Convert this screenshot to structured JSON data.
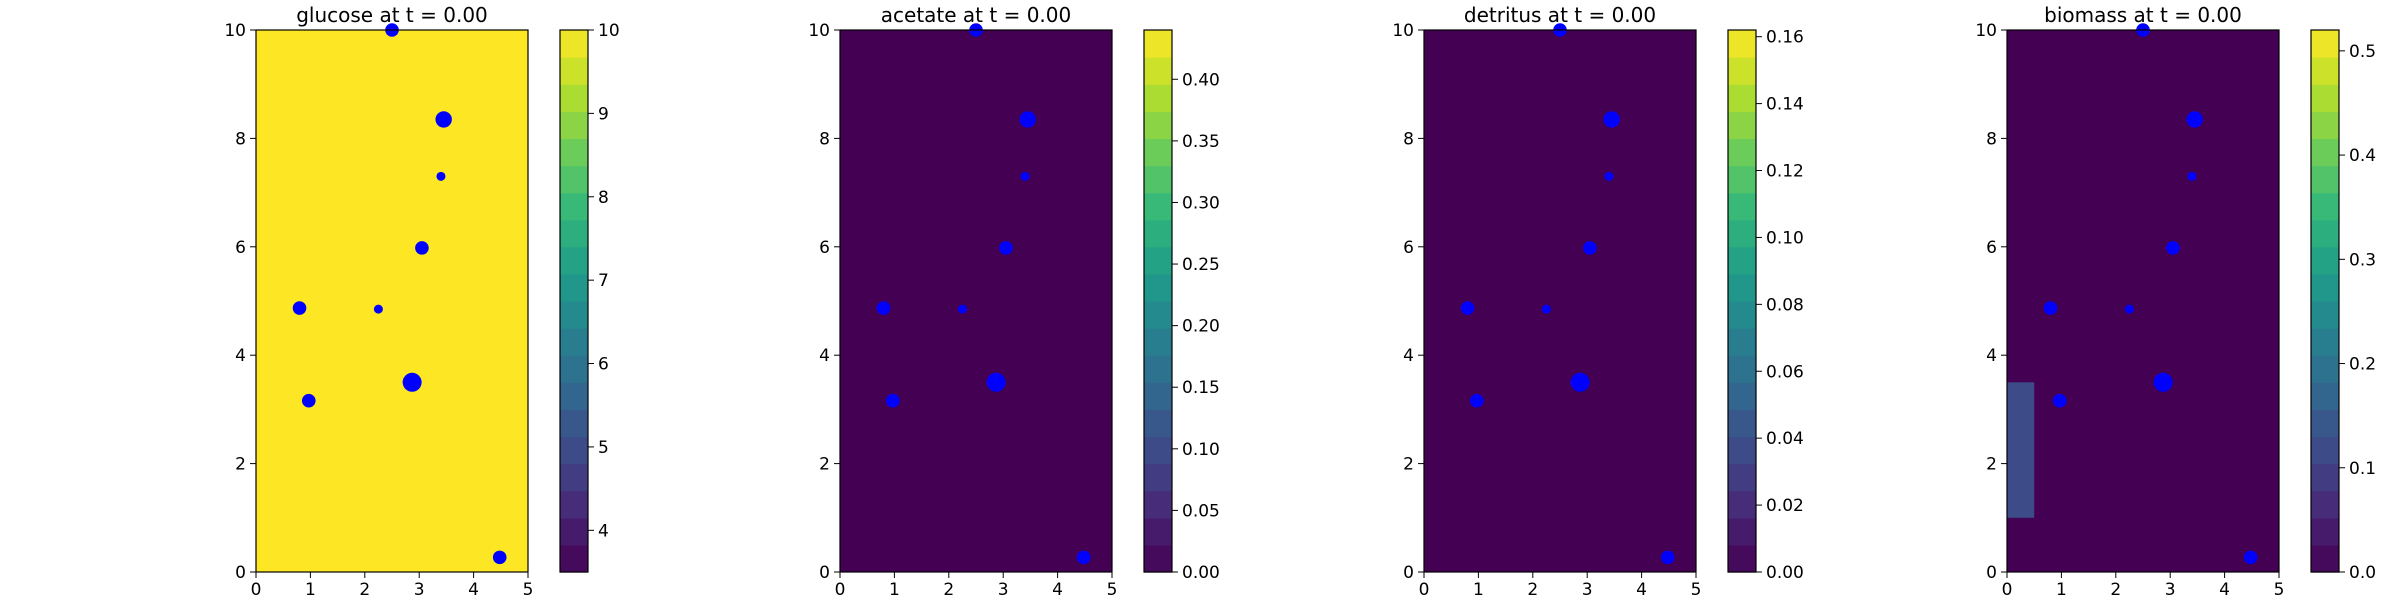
{
  "figure": {
    "background": "#ffffff"
  },
  "marker_color": "#0000ff",
  "colormap": "viridis",
  "chart_data": [
    {
      "type": "heatmap",
      "title": "glucose at t = 0.00",
      "xlim": [
        0,
        5
      ],
      "ylim": [
        0,
        10
      ],
      "xticks": [
        "0",
        "1",
        "2",
        "3",
        "4",
        "5"
      ],
      "yticks": [
        "0",
        "2",
        "4",
        "6",
        "8",
        "10"
      ],
      "field": {
        "uniform_value": 10
      },
      "regions": [],
      "colorbar": {
        "range": [
          3.5,
          10
        ],
        "tick_values": [
          4,
          5,
          6,
          7,
          8,
          9,
          10
        ],
        "tick_labels": [
          "4",
          "5",
          "6",
          "7",
          "8",
          "9",
          "10"
        ]
      },
      "points": [
        {
          "x": 2.5,
          "y": 10.0,
          "size": "small"
        },
        {
          "x": 3.45,
          "y": 8.35,
          "size": "medium"
        },
        {
          "x": 3.4,
          "y": 7.3,
          "size": "tiny"
        },
        {
          "x": 3.05,
          "y": 5.98,
          "size": "small"
        },
        {
          "x": 0.8,
          "y": 4.87,
          "size": "small"
        },
        {
          "x": 2.25,
          "y": 4.85,
          "size": "tiny"
        },
        {
          "x": 2.87,
          "y": 3.5,
          "size": "large"
        },
        {
          "x": 0.97,
          "y": 3.16,
          "size": "small"
        },
        {
          "x": 4.48,
          "y": 0.27,
          "size": "small"
        }
      ]
    },
    {
      "type": "heatmap",
      "title": "acetate at t = 0.00",
      "xlim": [
        0,
        5
      ],
      "ylim": [
        0,
        10
      ],
      "xticks": [
        "0",
        "1",
        "2",
        "3",
        "4",
        "5"
      ],
      "yticks": [
        "0",
        "2",
        "4",
        "6",
        "8",
        "10"
      ],
      "field": {
        "uniform_value": 0
      },
      "regions": [],
      "colorbar": {
        "range": [
          0,
          0.44
        ],
        "tick_values": [
          0,
          0.05,
          0.1,
          0.15,
          0.2,
          0.25,
          0.3,
          0.35,
          0.4
        ],
        "tick_labels": [
          "0.00",
          "0.05",
          "0.10",
          "0.15",
          "0.20",
          "0.25",
          "0.30",
          "0.35",
          "0.40"
        ]
      },
      "points": [
        {
          "x": 2.5,
          "y": 10.0,
          "size": "small"
        },
        {
          "x": 3.45,
          "y": 8.35,
          "size": "medium"
        },
        {
          "x": 3.4,
          "y": 7.3,
          "size": "tiny"
        },
        {
          "x": 3.05,
          "y": 5.98,
          "size": "small"
        },
        {
          "x": 0.8,
          "y": 4.87,
          "size": "small"
        },
        {
          "x": 2.25,
          "y": 4.85,
          "size": "tiny"
        },
        {
          "x": 2.87,
          "y": 3.5,
          "size": "large"
        },
        {
          "x": 0.97,
          "y": 3.16,
          "size": "small"
        },
        {
          "x": 4.48,
          "y": 0.27,
          "size": "small"
        }
      ]
    },
    {
      "type": "heatmap",
      "title": "detritus at t = 0.00",
      "xlim": [
        0,
        5
      ],
      "ylim": [
        0,
        10
      ],
      "xticks": [
        "0",
        "1",
        "2",
        "3",
        "4",
        "5"
      ],
      "yticks": [
        "0",
        "2",
        "4",
        "6",
        "8",
        "10"
      ],
      "field": {
        "uniform_value": 0
      },
      "regions": [],
      "colorbar": {
        "range": [
          0,
          0.162
        ],
        "tick_values": [
          0,
          0.02,
          0.04,
          0.06,
          0.08,
          0.1,
          0.12,
          0.14,
          0.16
        ],
        "tick_labels": [
          "0.00",
          "0.02",
          "0.04",
          "0.06",
          "0.08",
          "0.10",
          "0.12",
          "0.14",
          "0.16"
        ]
      },
      "points": [
        {
          "x": 2.5,
          "y": 10.0,
          "size": "small"
        },
        {
          "x": 3.45,
          "y": 8.35,
          "size": "medium"
        },
        {
          "x": 3.4,
          "y": 7.3,
          "size": "tiny"
        },
        {
          "x": 3.05,
          "y": 5.98,
          "size": "small"
        },
        {
          "x": 0.8,
          "y": 4.87,
          "size": "small"
        },
        {
          "x": 2.25,
          "y": 4.85,
          "size": "tiny"
        },
        {
          "x": 2.87,
          "y": 3.5,
          "size": "large"
        },
        {
          "x": 0.97,
          "y": 3.16,
          "size": "small"
        },
        {
          "x": 4.48,
          "y": 0.27,
          "size": "small"
        }
      ]
    },
    {
      "type": "heatmap",
      "title": "biomass at t = 0.00",
      "xlim": [
        0,
        5
      ],
      "ylim": [
        0,
        10
      ],
      "xticks": [
        "0",
        "1",
        "2",
        "3",
        "4",
        "5"
      ],
      "yticks": [
        "0",
        "2",
        "4",
        "6",
        "8",
        "10"
      ],
      "field": {
        "uniform_value": 0
      },
      "regions": [
        {
          "x": [
            0,
            0.5
          ],
          "y": [
            1,
            3.5
          ],
          "value": 0.12
        }
      ],
      "colorbar": {
        "range": [
          0,
          0.52
        ],
        "tick_values": [
          0,
          0.1,
          0.2,
          0.3,
          0.4,
          0.5
        ],
        "tick_labels": [
          "0.0",
          "0.1",
          "0.2",
          "0.3",
          "0.4",
          "0.5"
        ]
      },
      "points": [
        {
          "x": 2.5,
          "y": 10.0,
          "size": "small"
        },
        {
          "x": 3.45,
          "y": 8.35,
          "size": "medium"
        },
        {
          "x": 3.4,
          "y": 7.3,
          "size": "tiny"
        },
        {
          "x": 3.05,
          "y": 5.98,
          "size": "small"
        },
        {
          "x": 0.8,
          "y": 4.87,
          "size": "small"
        },
        {
          "x": 2.25,
          "y": 4.85,
          "size": "tiny"
        },
        {
          "x": 2.87,
          "y": 3.5,
          "size": "large"
        },
        {
          "x": 0.97,
          "y": 3.16,
          "size": "small"
        },
        {
          "x": 4.48,
          "y": 0.27,
          "size": "small"
        }
      ]
    }
  ]
}
